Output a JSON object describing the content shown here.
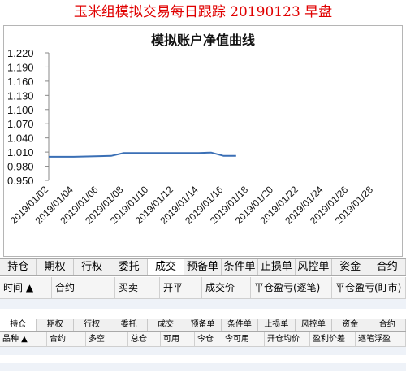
{
  "header": {
    "title": "玉米组模拟交易每日跟踪  20190123  早盘"
  },
  "chart_data": {
    "type": "line",
    "title": "模拟账户净值曲线",
    "xlabel": "",
    "ylabel": "",
    "ylim": [
      0.95,
      1.22
    ],
    "yticks": [
      "1.220",
      "1.190",
      "1.160",
      "1.130",
      "1.100",
      "1.070",
      "1.040",
      "1.010",
      "0.980",
      "0.950"
    ],
    "xticks": [
      "2019/01/02",
      "2019/01/04",
      "2019/01/06",
      "2019/01/08",
      "2019/01/10",
      "2019/01/12",
      "2019/01/14",
      "2019/01/16",
      "2019/01/18",
      "2019/01/20",
      "2019/01/22",
      "2019/01/24",
      "2019/01/26",
      "2019/01/28"
    ],
    "xlim": [
      "2019-01-02",
      "2019-01-28"
    ],
    "grid": false,
    "series_color": "#3a6fb5",
    "points": [
      {
        "x": "2019-01-02",
        "y": 1.0
      },
      {
        "x": "2019-01-03",
        "y": 1.0
      },
      {
        "x": "2019-01-04",
        "y": 1.0
      },
      {
        "x": "2019-01-07",
        "y": 1.002
      },
      {
        "x": "2019-01-08",
        "y": 1.008
      },
      {
        "x": "2019-01-09",
        "y": 1.008
      },
      {
        "x": "2019-01-10",
        "y": 1.008
      },
      {
        "x": "2019-01-11",
        "y": 1.008
      },
      {
        "x": "2019-01-14",
        "y": 1.008
      },
      {
        "x": "2019-01-15",
        "y": 1.009
      },
      {
        "x": "2019-01-16",
        "y": 1.002
      },
      {
        "x": "2019-01-17",
        "y": 1.002
      }
    ]
  },
  "tabs1": [
    "持仓",
    "期权",
    "行权",
    "委托",
    "成交",
    "预备单",
    "条件单",
    "止损单",
    "风控单",
    "资金",
    "合约"
  ],
  "tabs1_active": 4,
  "columns1": [
    "时间 ▲",
    "合约",
    "买卖",
    "开平",
    "成交价",
    "平仓盈亏(逐笔)",
    "平仓盈亏(盯市)"
  ],
  "tabs2": [
    "持仓",
    "期权",
    "行权",
    "委托",
    "成交",
    "预备单",
    "条件单",
    "止损单",
    "风控单",
    "资金",
    "合约"
  ],
  "tabs2_active": 0,
  "columns2": [
    "品种 ▲",
    "合约",
    "多空",
    "总仓",
    "可用",
    "今仓",
    "今可用",
    "开仓均价",
    "盈利价差",
    "逐笔浮盈"
  ]
}
